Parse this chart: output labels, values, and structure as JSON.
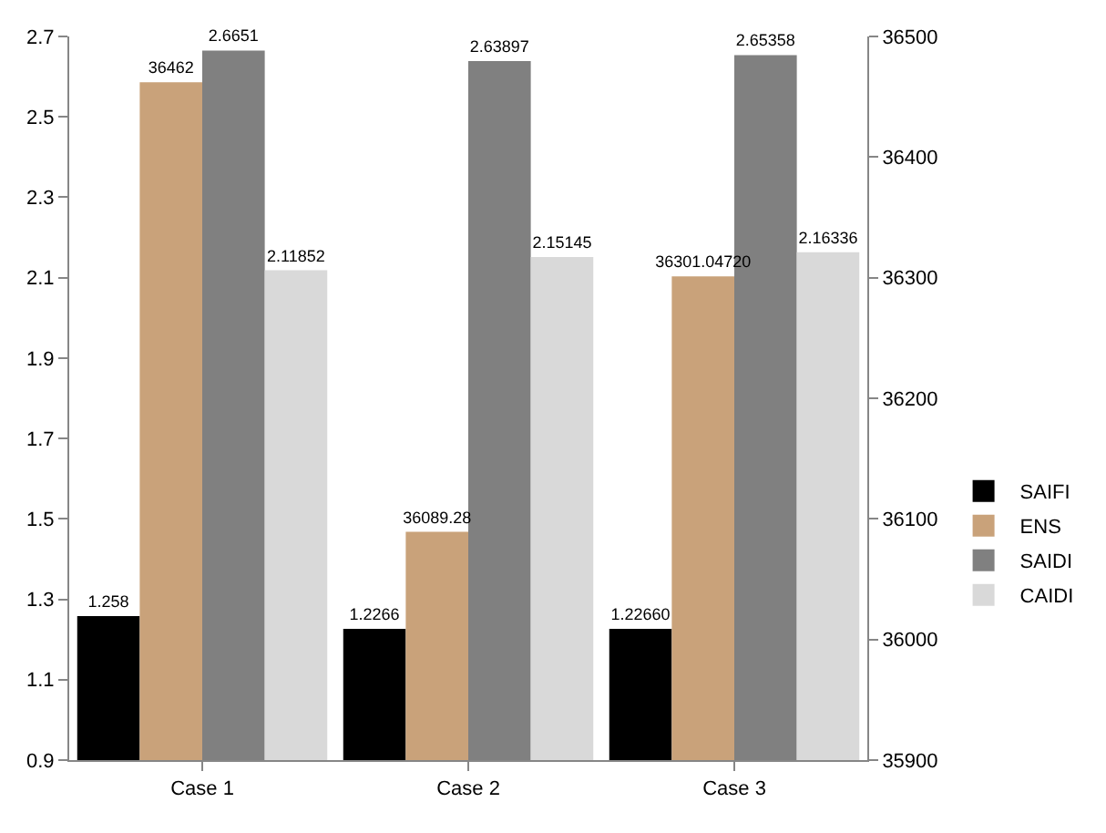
{
  "chart_data": {
    "type": "bar",
    "categories": [
      "Case 1",
      "Case 2",
      "Case 3"
    ],
    "series": [
      {
        "name": "SAIFI",
        "color": "#000000",
        "values": [
          1.258,
          1.2266,
          1.2266
        ],
        "value_labels": [
          "1.258",
          "1.2266",
          "1.22660"
        ]
      },
      {
        "name": "ENS",
        "color": "#c9a27a",
        "axis": "y2",
        "values": [
          36462,
          36089.28,
          36301.0472
        ],
        "value_labels": [
          "36462",
          "36089.28",
          "36301.04720"
        ]
      },
      {
        "name": "SAIDI",
        "color": "#808080",
        "values": [
          2.6651,
          2.63897,
          2.65358
        ],
        "value_labels": [
          "2.6651",
          "2.63897",
          "2.65358"
        ]
      },
      {
        "name": "CAIDI",
        "color": "#d9d9d9",
        "values": [
          2.11852,
          2.15145,
          2.16336
        ],
        "value_labels": [
          "2.11852",
          "2.15145",
          "2.16336"
        ]
      }
    ],
    "ylim": [
      0.9,
      2.7
    ],
    "yticks": [
      0.9,
      1.1,
      1.3,
      1.5,
      1.7,
      1.9,
      2.1,
      2.3,
      2.5,
      2.7
    ],
    "y2lim": [
      35900,
      36500
    ],
    "y2ticks": [
      35900,
      36000,
      36100,
      36200,
      36300,
      36400,
      36500
    ],
    "grid": false,
    "legend": "right"
  }
}
